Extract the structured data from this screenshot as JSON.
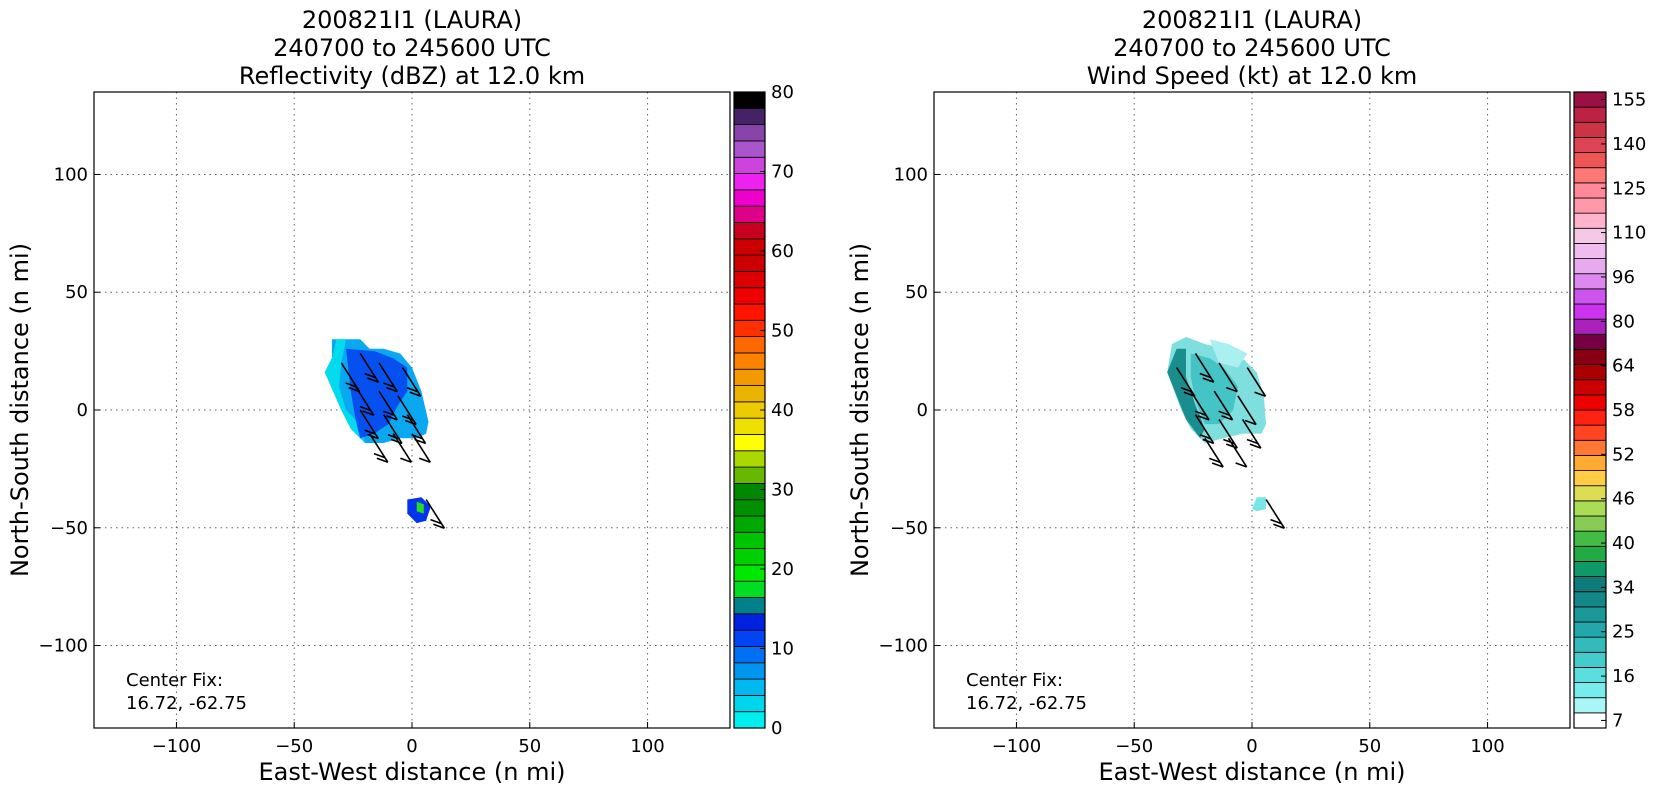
{
  "chart_data": [
    {
      "type": "heatmap",
      "title_lines": [
        "200821I1 (LAURA)",
        "240700 to 245600 UTC",
        "Reflectivity (dBZ) at 12.0 km"
      ],
      "xlabel": "East-West distance (n mi)",
      "ylabel": "North-South distance (n mi)",
      "xlim": [
        -135,
        135
      ],
      "ylim": [
        -135,
        135
      ],
      "xticks": [
        -100,
        -50,
        0,
        50,
        100
      ],
      "yticks": [
        -100,
        -50,
        0,
        50,
        100
      ],
      "grid": true,
      "annotation_lines": [
        "Center Fix:",
        "16.72, -62.75"
      ],
      "colorbar": {
        "ticks": [
          0,
          10,
          20,
          30,
          40,
          50,
          60,
          70,
          80
        ],
        "colors": [
          "#00eeee",
          "#00d5ee",
          "#00b9f0",
          "#0096f0",
          "#0070f4",
          "#0044f4",
          "#0022e0",
          "#00808a",
          "#00dd22",
          "#00e800",
          "#00d000",
          "#00c400",
          "#00a800",
          "#009000",
          "#008800",
          "#66b800",
          "#aad800",
          "#ffff00",
          "#f0e000",
          "#eccc00",
          "#eab400",
          "#f29a00",
          "#fc8200",
          "#ff6800",
          "#ff3000",
          "#ff1400",
          "#ee0000",
          "#dd0000",
          "#cc0000",
          "#cc0000",
          "#c80020",
          "#dd0088",
          "#ee00cc",
          "#ee22ee",
          "#cc44dd",
          "#aa55cc",
          "#8844aa",
          "#442266",
          "#000000"
        ]
      },
      "regions": [
        {
          "name": "main-echo",
          "color": "#0aa8f0",
          "points": [
            [
              -34,
              30
            ],
            [
              -22,
              30
            ],
            [
              -18,
              26
            ],
            [
              -12,
              26
            ],
            [
              -5,
              24
            ],
            [
              0,
              18
            ],
            [
              4,
              8
            ],
            [
              7,
              -5
            ],
            [
              6,
              -10
            ],
            [
              2,
              -12
            ],
            [
              -5,
              -12
            ],
            [
              -12,
              -14
            ],
            [
              -20,
              -14
            ],
            [
              -26,
              -8
            ],
            [
              -30,
              0
            ],
            [
              -37,
              16
            ],
            [
              -34,
              22
            ]
          ]
        },
        {
          "name": "main-edge",
          "color": "#00dcee",
          "points": [
            [
              -37,
              16
            ],
            [
              -34,
              22
            ],
            [
              -32,
              30
            ],
            [
              -28,
              30
            ],
            [
              -30,
              20
            ],
            [
              -31,
              10
            ],
            [
              -28,
              0
            ],
            [
              -22,
              -6
            ],
            [
              -20,
              -14
            ],
            [
              -26,
              -8
            ],
            [
              -30,
              0
            ]
          ]
        },
        {
          "name": "main-core",
          "color": "#0650ef",
          "points": [
            [
              -28,
              26
            ],
            [
              -16,
              25
            ],
            [
              -8,
              22
            ],
            [
              -2,
              18
            ],
            [
              -2,
              8
            ],
            [
              -6,
              2
            ],
            [
              -10,
              -6
            ],
            [
              -16,
              -10
            ],
            [
              -22,
              -12
            ],
            [
              -24,
              -4
            ],
            [
              -26,
              8
            ]
          ]
        },
        {
          "name": "south-cell",
          "color": "#0033ee",
          "points": [
            [
              -2,
              -38
            ],
            [
              4,
              -37
            ],
            [
              8,
              -41
            ],
            [
              6,
              -47
            ],
            [
              2,
              -48
            ],
            [
              -2,
              -44
            ]
          ]
        },
        {
          "name": "south-core",
          "color": "#22dd22",
          "points": [
            [
              2,
              -39
            ],
            [
              5,
              -40
            ],
            [
              5,
              -44
            ],
            [
              2,
              -43
            ]
          ]
        }
      ],
      "barbs": [
        {
          "x": -30,
          "y": 20,
          "barbs": 2
        },
        {
          "x": -22,
          "y": 24,
          "barbs": 2
        },
        {
          "x": -14,
          "y": 20,
          "barbs": 2
        },
        {
          "x": -4,
          "y": 18,
          "barbs": 2
        },
        {
          "x": -24,
          "y": 10,
          "barbs": 2
        },
        {
          "x": -14,
          "y": 8,
          "barbs": 2
        },
        {
          "x": -6,
          "y": 6,
          "barbs": 2
        },
        {
          "x": -22,
          "y": 0,
          "barbs": 2
        },
        {
          "x": -12,
          "y": -2,
          "barbs": 2
        },
        {
          "x": -2,
          "y": -2,
          "barbs": 2
        },
        {
          "x": -18,
          "y": -10,
          "barbs": 2
        },
        {
          "x": -8,
          "y": -10,
          "barbs": 1
        },
        {
          "x": 0,
          "y": -10,
          "barbs": 1
        },
        {
          "x": 6,
          "y": -38,
          "barbs": 2
        }
      ]
    },
    {
      "type": "heatmap",
      "title_lines": [
        "200821I1 (LAURA)",
        "240700 to 245600 UTC",
        "Wind Speed (kt) at 12.0 km"
      ],
      "xlabel": "East-West distance (n mi)",
      "ylabel": "North-South distance (n mi)",
      "xlim": [
        -135,
        135
      ],
      "ylim": [
        -135,
        135
      ],
      "xticks": [
        -100,
        -50,
        0,
        50,
        100
      ],
      "yticks": [
        -100,
        -50,
        0,
        50,
        100
      ],
      "grid": true,
      "annotation_lines": [
        "Center Fix:",
        "16.72, -62.75"
      ],
      "colorbar": {
        "ticks": [
          7,
          16,
          25,
          34,
          40,
          46,
          52,
          58,
          64,
          80,
          96,
          110,
          125,
          140,
          155
        ],
        "colors": [
          "#ffffff",
          "#aaf5f5",
          "#77ecec",
          "#5cdede",
          "#44cccc",
          "#33bbbb",
          "#22a8aa",
          "#1a9999",
          "#148888",
          "#0e7a7a",
          "#0f9966",
          "#22aa44",
          "#44bb44",
          "#88cc55",
          "#aadd55",
          "#dddd55",
          "#ffcc44",
          "#ffaa33",
          "#ff7733",
          "#ff4422",
          "#ff2211",
          "#ee0000",
          "#cc0000",
          "#aa0000",
          "#880011",
          "#770044",
          "#aa22bb",
          "#cc33ee",
          "#cc55ee",
          "#dd88ee",
          "#e8aaee",
          "#f0bbee",
          "#f5c8e6",
          "#ffb3cc",
          "#ff99aa",
          "#ff8899",
          "#ff7777",
          "#ee5555",
          "#dd4455",
          "#cc3344",
          "#bb2244",
          "#991144"
        ]
      },
      "regions": [
        {
          "name": "main-wind",
          "color": "#7fdede",
          "points": [
            [
              -34,
              28
            ],
            [
              -28,
              31
            ],
            [
              -20,
              28
            ],
            [
              -12,
              26
            ],
            [
              -4,
              22
            ],
            [
              2,
              16
            ],
            [
              5,
              6
            ],
            [
              6,
              -6
            ],
            [
              4,
              -10
            ],
            [
              -4,
              -10
            ],
            [
              -12,
              -12
            ],
            [
              -20,
              -14
            ],
            [
              -26,
              -8
            ],
            [
              -30,
              0
            ],
            [
              -36,
              16
            ]
          ]
        },
        {
          "name": "main-dark",
          "color": "#1a8e8e",
          "points": [
            [
              -36,
              16
            ],
            [
              -32,
              26
            ],
            [
              -28,
              26
            ],
            [
              -28,
              14
            ],
            [
              -24,
              2
            ],
            [
              -20,
              -8
            ],
            [
              -22,
              -12
            ],
            [
              -28,
              -4
            ],
            [
              -32,
              6
            ]
          ]
        },
        {
          "name": "main-mid",
          "color": "#44c4c4",
          "points": [
            [
              -26,
              24
            ],
            [
              -18,
              22
            ],
            [
              -12,
              18
            ],
            [
              -6,
              10
            ],
            [
              -8,
              0
            ],
            [
              -14,
              -6
            ],
            [
              -20,
              -6
            ],
            [
              -24,
              4
            ],
            [
              -26,
              14
            ]
          ]
        },
        {
          "name": "main-light",
          "color": "#aaf0f0",
          "points": [
            [
              -18,
              30
            ],
            [
              -10,
              28
            ],
            [
              -2,
              24
            ],
            [
              -6,
              18
            ],
            [
              -14,
              20
            ]
          ]
        },
        {
          "name": "south-wind",
          "color": "#77e6e6",
          "points": [
            [
              2,
              -37
            ],
            [
              6,
              -37
            ],
            [
              6,
              -42
            ],
            [
              2,
              -43
            ],
            [
              0,
              -42
            ]
          ]
        }
      ],
      "barbs": [
        {
          "x": -32,
          "y": 18,
          "barbs": 2
        },
        {
          "x": -24,
          "y": 24,
          "barbs": 2
        },
        {
          "x": -14,
          "y": 20,
          "barbs": 1
        },
        {
          "x": -2,
          "y": 18,
          "barbs": 1
        },
        {
          "x": -26,
          "y": 8,
          "barbs": 2
        },
        {
          "x": -16,
          "y": 8,
          "barbs": 2
        },
        {
          "x": -6,
          "y": 6,
          "barbs": 1
        },
        {
          "x": -24,
          "y": -2,
          "barbs": 2
        },
        {
          "x": -14,
          "y": -4,
          "barbs": 2
        },
        {
          "x": -4,
          "y": -4,
          "barbs": 2
        },
        {
          "x": -20,
          "y": -12,
          "barbs": 2
        },
        {
          "x": -10,
          "y": -12,
          "barbs": 1
        },
        {
          "x": 6,
          "y": -38,
          "barbs": 2
        }
      ]
    }
  ]
}
